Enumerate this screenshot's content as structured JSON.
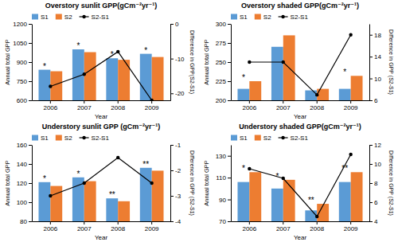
{
  "chart_data": [
    {
      "type": "bar",
      "title": "Overstory sunlit GPP(gCm⁻²yr⁻¹)",
      "xlabel": "Year",
      "ylabel": "Annual total GPP",
      "y2label": "Difference in GPP(S2-S1)",
      "categories": [
        "2006",
        "2007",
        "2008",
        "2009"
      ],
      "series": [
        {
          "name": "S1",
          "type": "bar",
          "color": "#5b9bd5",
          "values": [
            840,
            1000,
            930,
            965
          ]
        },
        {
          "name": "S2",
          "type": "bar",
          "color": "#ed7d31",
          "values": [
            828,
            978,
            918,
            940
          ]
        },
        {
          "name": "S2-S1",
          "type": "line",
          "axis": "y2",
          "color": "black",
          "marker": "circle",
          "values": [
            -18.0,
            -14.5,
            -8.0,
            -22.0
          ]
        }
      ],
      "ylim": [
        600,
        1200
      ],
      "yticks": [
        600,
        750,
        900,
        1050,
        1200
      ],
      "y2lim": [
        -22,
        0
      ],
      "y2ticks": [
        -20,
        -10,
        0
      ],
      "legend": "upper left",
      "annotations": [
        {
          "category": "2006",
          "text": "*"
        },
        {
          "category": "2007",
          "text": "*"
        },
        {
          "category": "2008",
          "text": "*"
        },
        {
          "category": "2009",
          "text": "*"
        }
      ]
    },
    {
      "type": "bar",
      "title": "Overstory shaded GPP(gCm⁻²yr⁻¹)",
      "xlabel": "Year",
      "ylabel": "Annual total GPP",
      "y2label": "Difference in GPP (S2-S1)",
      "categories": [
        "2006",
        "2007",
        "2008",
        "2009"
      ],
      "series": [
        {
          "name": "S1",
          "type": "bar",
          "color": "#5b9bd5",
          "values": [
            215,
            270,
            213,
            215
          ]
        },
        {
          "name": "S2",
          "type": "bar",
          "color": "#ed7d31",
          "values": [
            225,
            285,
            215,
            232
          ]
        },
        {
          "name": "S2-S1",
          "type": "line",
          "axis": "y2",
          "color": "black",
          "marker": "circle",
          "values": [
            13.0,
            13.0,
            7.0,
            18.0
          ]
        }
      ],
      "ylim": [
        200,
        300
      ],
      "yticks": [
        200,
        225,
        250,
        275,
        300
      ],
      "y2lim": [
        6,
        20
      ],
      "y2ticks": [
        6,
        10,
        14,
        18
      ],
      "legend": "upper left",
      "annotations": [
        {
          "category": "2006",
          "text": "*"
        },
        {
          "category": "2009",
          "text": "*"
        }
      ]
    },
    {
      "type": "bar",
      "title": "Understory sunlit GPP (gCm⁻²yr⁻¹)",
      "xlabel": "Year",
      "ylabel": "Annual total GPP",
      "y2label": "Difference in GPP (S2-S1)",
      "categories": [
        "2006",
        "2007",
        "2008",
        "2009"
      ],
      "series": [
        {
          "name": "S1",
          "type": "bar",
          "color": "#5b9bd5",
          "values": [
            121,
            126,
            104,
            136
          ]
        },
        {
          "name": "S2",
          "type": "bar",
          "color": "#ed7d31",
          "values": [
            117,
            122,
            101,
            133
          ]
        },
        {
          "name": "S2-S1",
          "type": "line",
          "axis": "y2",
          "color": "black",
          "marker": "circle",
          "values": [
            -3.0,
            -2.5,
            -1.5,
            -2.5
          ]
        }
      ],
      "ylim": [
        80,
        160
      ],
      "yticks": [
        80,
        100,
        120,
        140,
        160
      ],
      "y2lim": [
        -4,
        -1
      ],
      "y2ticks": [
        -4,
        -3,
        -2,
        -1
      ],
      "legend": "upper left",
      "annotations": [
        {
          "category": "2006",
          "text": "*"
        },
        {
          "category": "2007",
          "text": "*"
        },
        {
          "category": "2008",
          "text": "**"
        },
        {
          "category": "2009",
          "text": "**"
        }
      ]
    },
    {
      "type": "bar",
      "title": "Understory shaded GPP(gCm⁻²yr⁻¹)",
      "xlabel": "Year",
      "ylabel": "Annual total GPP",
      "y2label": "Difference in GPP (S2-S1)",
      "categories": [
        "2006",
        "2007",
        "2008",
        "2009"
      ],
      "series": [
        {
          "name": "S1",
          "type": "bar",
          "color": "#5b9bd5",
          "values": [
            106,
            100,
            80,
            106
          ]
        },
        {
          "name": "S2",
          "type": "bar",
          "color": "#ed7d31",
          "values": [
            115,
            108,
            86,
            115
          ]
        },
        {
          "name": "S2-S1",
          "type": "line",
          "axis": "y2",
          "color": "black",
          "marker": "circle",
          "values": [
            9.5,
            8.5,
            4.5,
            11.0
          ]
        }
      ],
      "ylim": [
        70,
        140
      ],
      "yticks": [
        70,
        90,
        110,
        130
      ],
      "y2lim": [
        4,
        12
      ],
      "y2ticks": [
        4,
        6,
        8,
        10,
        12
      ],
      "legend": "upper left",
      "annotations": [
        {
          "category": "2006",
          "text": "*"
        },
        {
          "category": "2007",
          "text": "*"
        },
        {
          "category": "2008",
          "text": "**"
        },
        {
          "category": "2009",
          "text": "**"
        }
      ]
    }
  ]
}
